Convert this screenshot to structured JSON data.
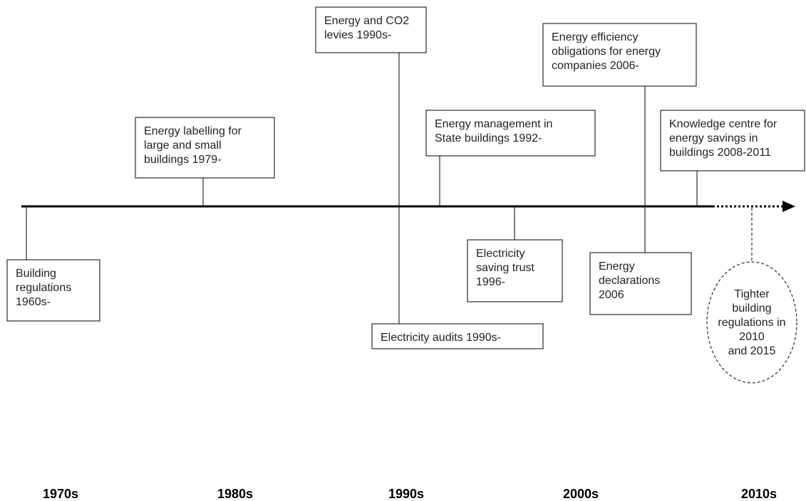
{
  "events": [
    {
      "lines": [
        "Building",
        "regulations",
        "1960s-"
      ]
    },
    {
      "lines": [
        "Energy labelling for",
        "large and small",
        "buildings 1979-"
      ]
    },
    {
      "lines": [
        "Energy and CO2",
        "levies 1990s-"
      ]
    },
    {
      "lines": [
        "Electricity audits 1990s-"
      ]
    },
    {
      "lines": [
        "Energy management in",
        "State buildings 1992-"
      ]
    },
    {
      "lines": [
        "Electricity",
        "saving trust",
        "1996-"
      ]
    },
    {
      "lines": [
        "Energy efficiency",
        "obligations for energy",
        "companies 2006-"
      ]
    },
    {
      "lines": [
        "Energy",
        "declarations",
        "2006"
      ]
    },
    {
      "lines": [
        "Knowledge centre for",
        "energy savings in",
        "buildings 2008-2011"
      ]
    },
    {
      "lines": [
        "Tighter",
        "building",
        "regulations in",
        "2010",
        "and 2015"
      ]
    }
  ],
  "decades": [
    "1970s",
    "1980s",
    "1990s",
    "2000s",
    "2010s"
  ]
}
